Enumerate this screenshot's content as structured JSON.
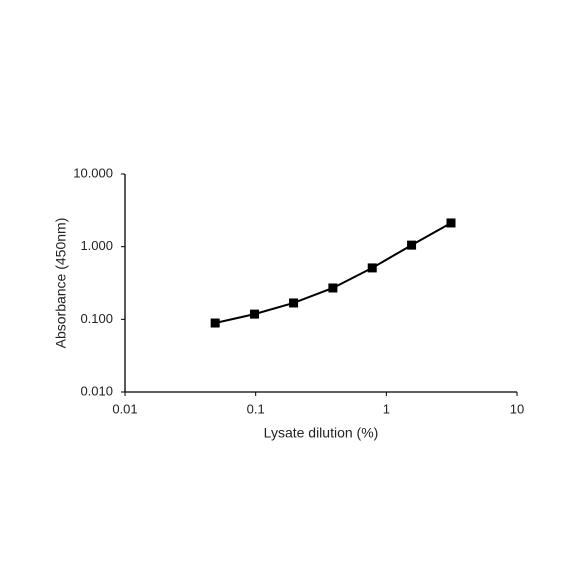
{
  "chart_data": {
    "type": "line",
    "x_label": "Lysate dilution (%)",
    "y_label": "Absorbance (450nm)",
    "x": [
      0.049,
      0.098,
      0.195,
      0.39,
      0.78,
      1.56,
      3.125
    ],
    "series": [
      {
        "color": "#000000",
        "values": [
          0.089,
          0.118,
          0.168,
          0.27,
          0.51,
          1.05,
          2.12
        ]
      }
    ],
    "xlim": [
      0.01,
      10
    ],
    "ylim": [
      0.01,
      10
    ],
    "xticks": [
      0.01,
      0.1,
      1,
      10
    ],
    "yticks": [
      {
        "value": 0.01,
        "label": "0.010"
      },
      {
        "value": 0.1,
        "label": "0.100"
      },
      {
        "value": 1,
        "label": "1.000"
      },
      {
        "value": 10,
        "label": "10.000"
      }
    ],
    "xscale": "log",
    "yscale": "log",
    "grid": false
  }
}
